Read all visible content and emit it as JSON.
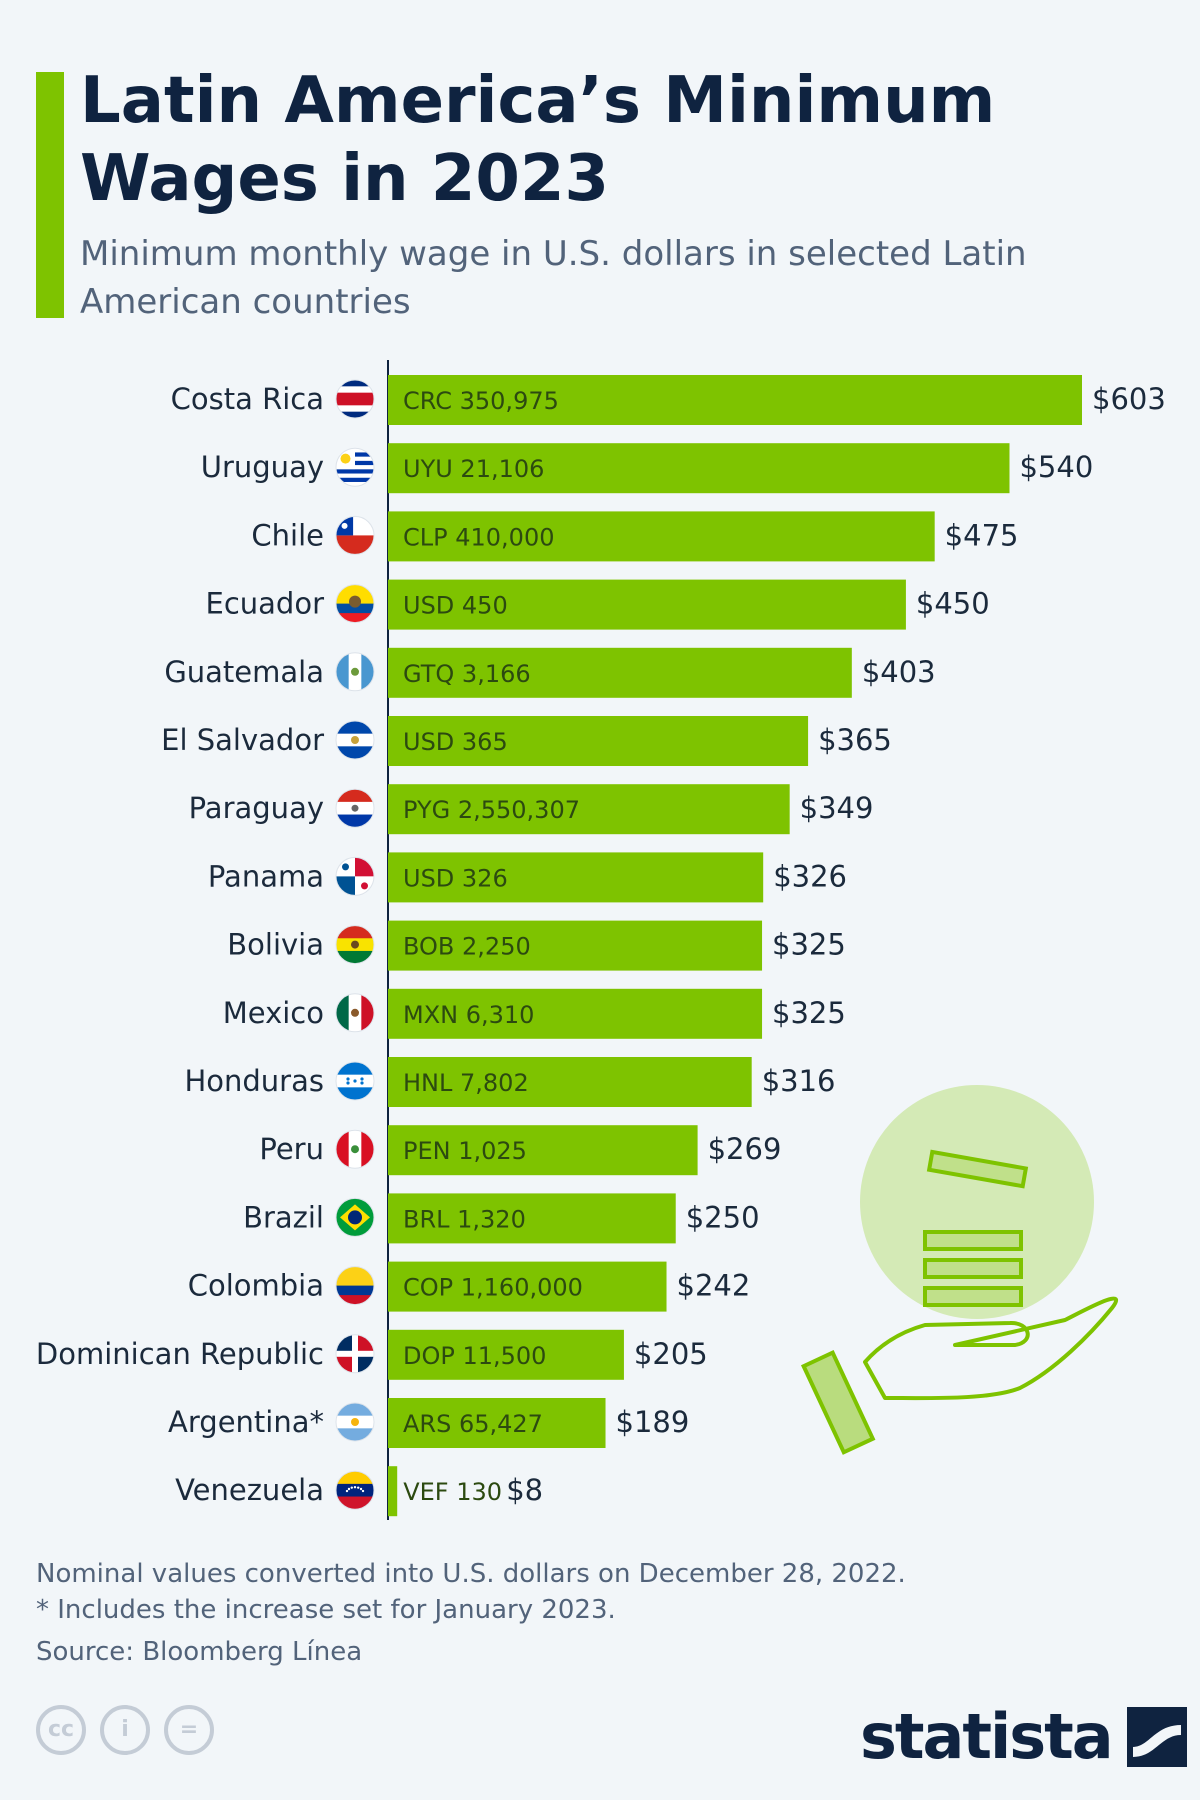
{
  "title": "Latin America’s Minimum Wages in 2023",
  "subtitle": "Minimum monthly wage in U.S. dollars in selected Latin American countries",
  "footnotes": {
    "note1": "Nominal values converted into U.S. dollars on December 28, 2022.",
    "note2": "* Includes the increase set for January 2023.",
    "source": "Source: Bloomberg Línea"
  },
  "brand": "statista",
  "colors": {
    "bar": "#7ec300",
    "title": "#0f2340",
    "text": "#1b2a3c",
    "background": "#f2f6f9"
  },
  "chart_data": {
    "type": "bar",
    "orientation": "horizontal",
    "title": "",
    "xlabel": "",
    "ylabel": "",
    "xlim": [
      0,
      603
    ],
    "grid": false,
    "rows": [
      {
        "country": "Costa Rica",
        "local": "CRC 350,975",
        "value": 603,
        "label": "$603",
        "flag": "costa-rica"
      },
      {
        "country": "Uruguay",
        "local": "UYU 21,106",
        "value": 540,
        "label": "$540",
        "flag": "uruguay"
      },
      {
        "country": "Chile",
        "local": "CLP 410,000",
        "value": 475,
        "label": "$475",
        "flag": "chile"
      },
      {
        "country": "Ecuador",
        "local": "USD 450",
        "value": 450,
        "label": "$450",
        "flag": "ecuador"
      },
      {
        "country": "Guatemala",
        "local": "GTQ 3,166",
        "value": 403,
        "label": "$403",
        "flag": "guatemala"
      },
      {
        "country": "El Salvador",
        "local": "USD 365",
        "value": 365,
        "label": "$365",
        "flag": "el-salvador"
      },
      {
        "country": "Paraguay",
        "local": "PYG 2,550,307",
        "value": 349,
        "label": "$349",
        "flag": "paraguay"
      },
      {
        "country": "Panama",
        "local": "USD 326",
        "value": 326,
        "label": "$326",
        "flag": "panama"
      },
      {
        "country": "Bolivia",
        "local": "BOB 2,250",
        "value": 325,
        "label": "$325",
        "flag": "bolivia"
      },
      {
        "country": "Mexico",
        "local": "MXN 6,310",
        "value": 325,
        "label": "$325",
        "flag": "mexico"
      },
      {
        "country": "Honduras",
        "local": "HNL 7,802",
        "value": 316,
        "label": "$316",
        "flag": "honduras"
      },
      {
        "country": "Peru",
        "local": "PEN 1,025",
        "value": 269,
        "label": "$269",
        "flag": "peru"
      },
      {
        "country": "Brazil",
        "local": "BRL 1,320",
        "value": 250,
        "label": "$250",
        "flag": "brazil"
      },
      {
        "country": "Colombia",
        "local": "COP 1,160,000",
        "value": 242,
        "label": "$242",
        "flag": "colombia"
      },
      {
        "country": "Dominican Republic",
        "local": "DOP 11,500",
        "value": 205,
        "label": "$205",
        "flag": "dominican-republic"
      },
      {
        "country": "Argentina*",
        "local": "ARS 65,427",
        "value": 189,
        "label": "$189",
        "flag": "argentina"
      },
      {
        "country": "Venezuela",
        "local": "VEF 130",
        "value": 8,
        "label": "$8",
        "flag": "venezuela"
      }
    ]
  }
}
